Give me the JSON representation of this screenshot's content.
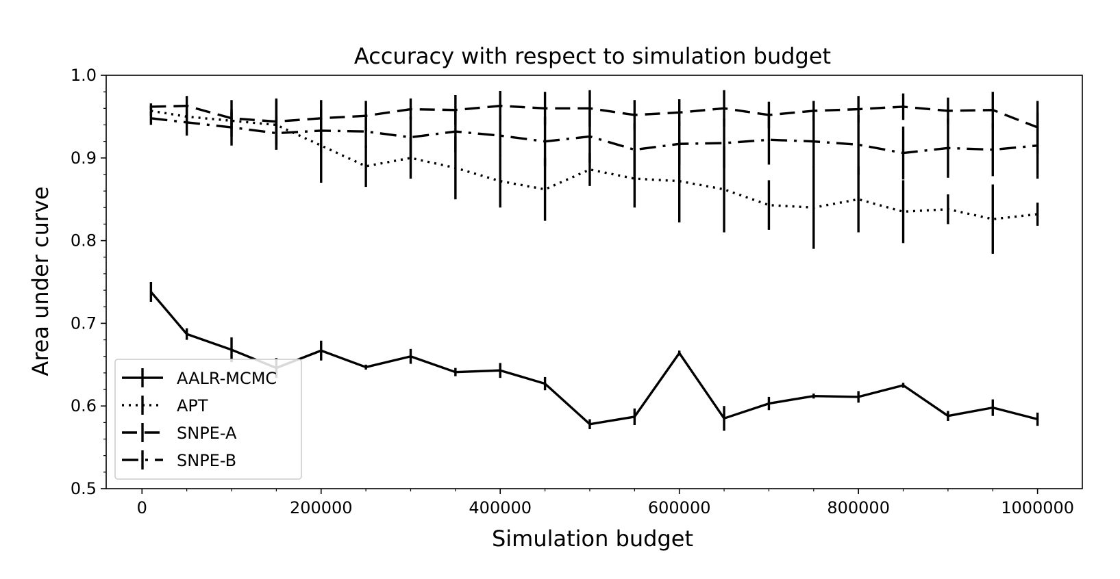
{
  "chart_data": {
    "type": "line",
    "title": "Accuracy with respect to simulation budget",
    "xlabel": "Simulation budget",
    "ylabel": "Area under curve",
    "xlim": [
      -40000,
      1050000
    ],
    "ylim": [
      0.5,
      1.0
    ],
    "x": [
      10000,
      50000,
      100000,
      150000,
      200000,
      250000,
      300000,
      350000,
      400000,
      450000,
      500000,
      550000,
      600000,
      650000,
      700000,
      750000,
      800000,
      850000,
      900000,
      950000,
      1000000
    ],
    "x_ticks": [
      0,
      200000,
      400000,
      600000,
      800000,
      1000000
    ],
    "x_tick_labels": [
      "0",
      "200000",
      "400000",
      "600000",
      "800000",
      "1000000"
    ],
    "y_ticks": [
      0.5,
      0.6,
      0.7,
      0.8,
      0.9,
      1.0
    ],
    "y_tick_labels": [
      "0.5",
      "0.6",
      "0.7",
      "0.8",
      "0.9",
      "1.0"
    ],
    "grid": false,
    "legend_position": "lower-left",
    "line_color": "#000000",
    "series": [
      {
        "name": "AALR-MCMC",
        "dash": "solid",
        "values": [
          0.738,
          0.687,
          0.668,
          0.646,
          0.667,
          0.647,
          0.66,
          0.641,
          0.643,
          0.627,
          0.578,
          0.587,
          0.664,
          0.585,
          0.603,
          0.612,
          0.611,
          0.625,
          0.588,
          0.598,
          0.584
        ],
        "errors": [
          0.012,
          0.007,
          0.015,
          0.012,
          0.012,
          0.003,
          0.009,
          0.005,
          0.009,
          0.008,
          0.006,
          0.01,
          0.003,
          0.015,
          0.008,
          0.003,
          0.007,
          0.003,
          0.006,
          0.01,
          0.008
        ]
      },
      {
        "name": "APT",
        "dash": "dotted",
        "values": [
          0.957,
          0.95,
          0.945,
          0.94,
          0.915,
          0.89,
          0.9,
          0.888,
          0.872,
          0.862,
          0.886,
          0.875,
          0.872,
          0.862,
          0.843,
          0.84,
          0.85,
          0.835,
          0.838,
          0.826,
          0.832
        ],
        "errors": [
          0.006,
          0.01,
          0.01,
          0.03,
          0.045,
          0.025,
          0.025,
          0.038,
          0.032,
          0.038,
          0.02,
          0.035,
          0.05,
          0.052,
          0.03,
          0.05,
          0.04,
          0.038,
          0.018,
          0.042,
          0.014
        ]
      },
      {
        "name": "SNPE-A",
        "dash": "dashed",
        "values": [
          0.962,
          0.963,
          0.948,
          0.944,
          0.948,
          0.951,
          0.959,
          0.958,
          0.963,
          0.96,
          0.96,
          0.952,
          0.955,
          0.96,
          0.952,
          0.957,
          0.959,
          0.962,
          0.957,
          0.958,
          0.937
        ],
        "errors": [
          0.004,
          0.012,
          0.022,
          0.028,
          0.022,
          0.018,
          0.013,
          0.018,
          0.018,
          0.02,
          0.022,
          0.018,
          0.016,
          0.022,
          0.016,
          0.012,
          0.016,
          0.016,
          0.016,
          0.022,
          0.032
        ]
      },
      {
        "name": "SNPE-B",
        "dash": "dashdot",
        "values": [
          0.948,
          0.943,
          0.937,
          0.93,
          0.933,
          0.932,
          0.925,
          0.932,
          0.927,
          0.92,
          0.926,
          0.91,
          0.917,
          0.918,
          0.922,
          0.92,
          0.916,
          0.906,
          0.912,
          0.91,
          0.915
        ],
        "errors": [
          0.008,
          0.016,
          0.022,
          0.02,
          0.026,
          0.02,
          0.025,
          0.025,
          0.025,
          0.03,
          0.032,
          0.032,
          0.026,
          0.03,
          0.03,
          0.032,
          0.036,
          0.032,
          0.036,
          0.032,
          0.04
        ]
      }
    ]
  }
}
